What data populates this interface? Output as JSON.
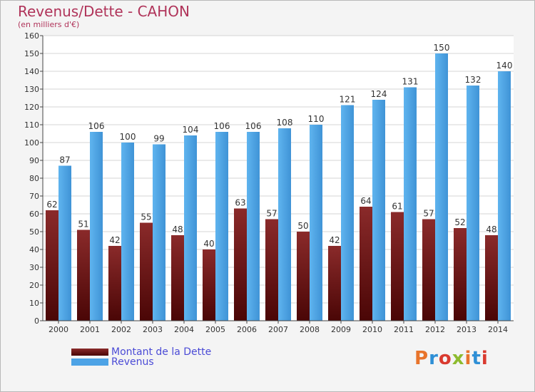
{
  "chart_data": {
    "type": "bar",
    "title": "Revenus/Dette - CAHON",
    "subtitle": "(en milliers d'€)",
    "categories": [
      "2000",
      "2001",
      "2002",
      "2003",
      "2004",
      "2005",
      "2006",
      "2007",
      "2008",
      "2009",
      "2010",
      "2011",
      "2012",
      "2013",
      "2014"
    ],
    "series": [
      {
        "name": "Montant de la Dette",
        "color": "#6b1414",
        "values": [
          62,
          51,
          42,
          55,
          48,
          40,
          63,
          57,
          50,
          42,
          64,
          61,
          57,
          52,
          48
        ]
      },
      {
        "name": "Revenus",
        "color": "#4da3e6",
        "values": [
          87,
          106,
          100,
          99,
          104,
          106,
          106,
          108,
          110,
          121,
          124,
          131,
          150,
          132,
          140
        ]
      }
    ],
    "ylim": [
      0,
      160
    ],
    "yticks": [
      0,
      10,
      20,
      30,
      40,
      50,
      60,
      70,
      80,
      90,
      100,
      110,
      120,
      130,
      140,
      150,
      160
    ],
    "grid": true,
    "legend_position": "bottom-left"
  },
  "logo": {
    "text": "Proxiti",
    "colors": [
      "#e8742b",
      "#2e8fd6",
      "#d93a2f",
      "#8dbb2e",
      "#e8742b",
      "#2e8fd6",
      "#d93a2f"
    ]
  }
}
